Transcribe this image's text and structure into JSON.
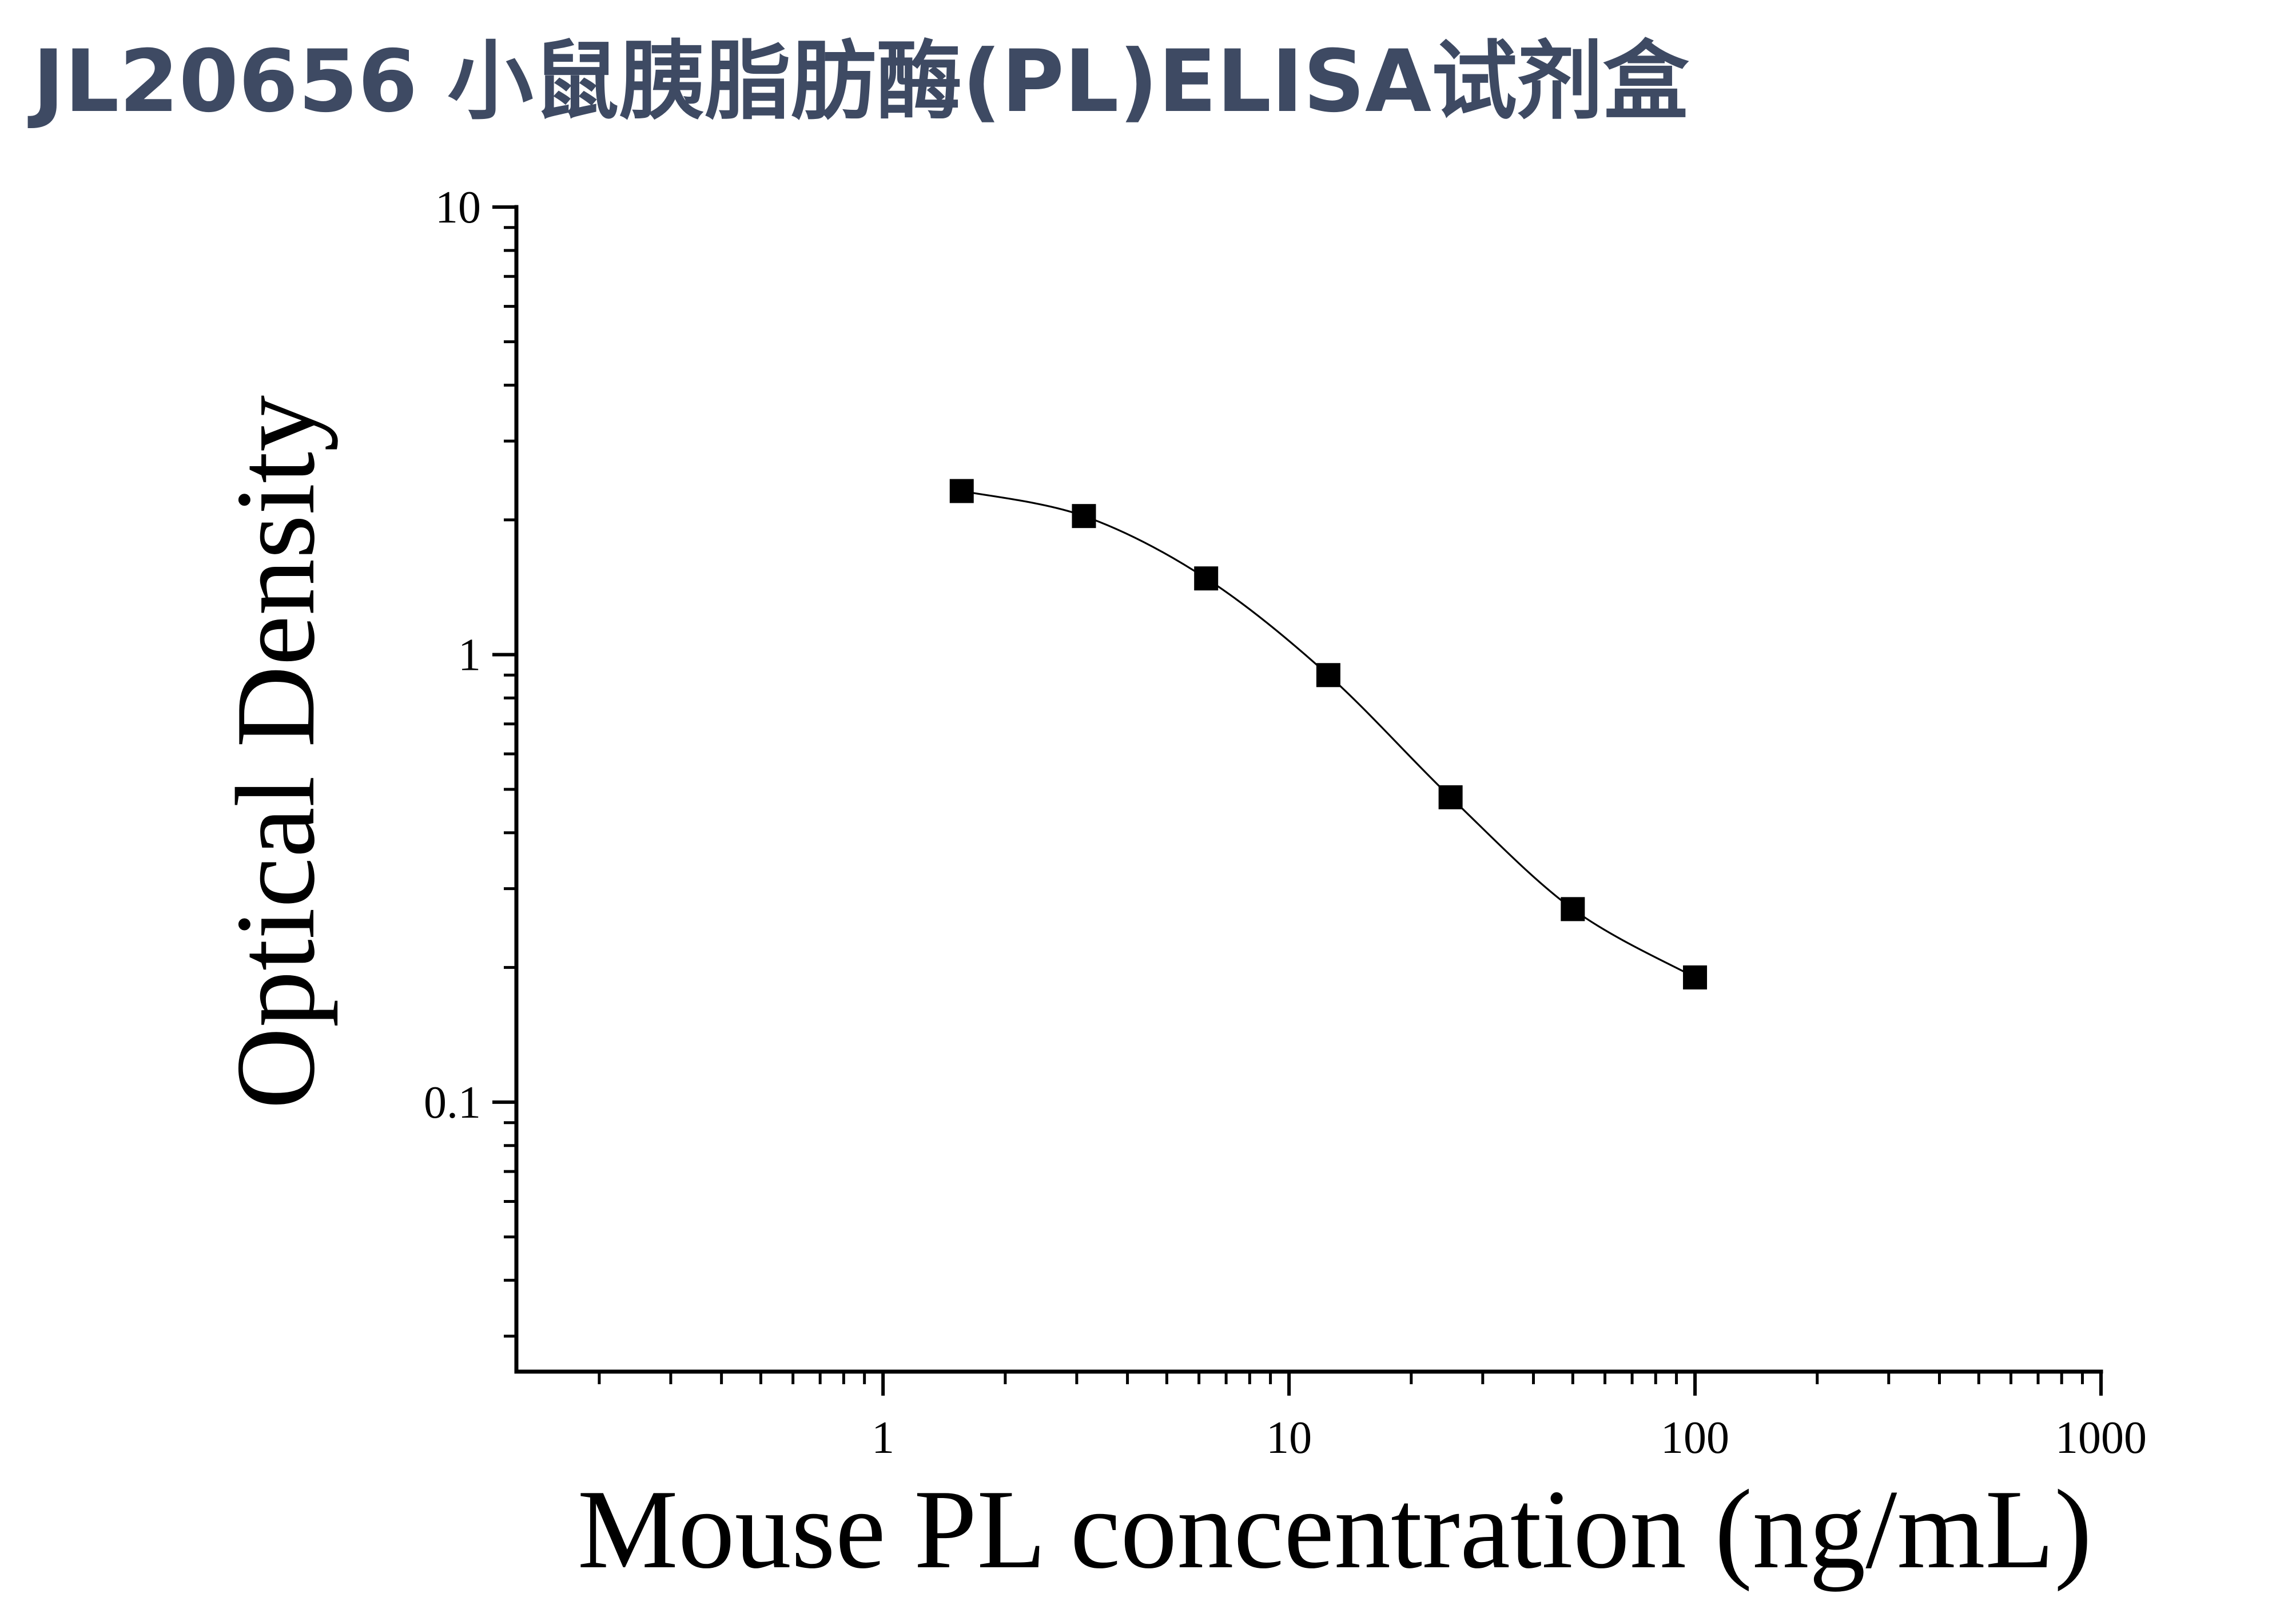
{
  "colors": {
    "background": "#ffffff",
    "title": "#3e4a63",
    "axis": "#000000",
    "marker": "#000000",
    "curve": "#000000"
  },
  "chart_data": {
    "type": "scatter",
    "title": "JL20656 小鼠胰脂肪酶(PL)ELISA试剂盒",
    "xlabel": "Mouse PL concentration (ng/mL)",
    "ylabel": "Optical Density",
    "x_scale": "log",
    "y_scale": "log",
    "xlim": [
      0.125,
      1000
    ],
    "ylim": [
      0.025,
      10
    ],
    "x_ticks": [
      1,
      10,
      100,
      1000
    ],
    "x_tick_labels": [
      "1",
      "10",
      "100",
      "1000"
    ],
    "y_ticks": [
      0.1,
      1,
      10
    ],
    "y_tick_labels": [
      "0.1",
      "1",
      "10"
    ],
    "grid": false,
    "legend": false,
    "fit_curve": true,
    "series": [
      {
        "x": [
          1.5625,
          3.125,
          6.25,
          12.5,
          25,
          50,
          100
        ],
        "y": [
          2.32,
          2.04,
          1.48,
          0.9,
          0.48,
          0.27,
          0.19
        ]
      }
    ]
  }
}
